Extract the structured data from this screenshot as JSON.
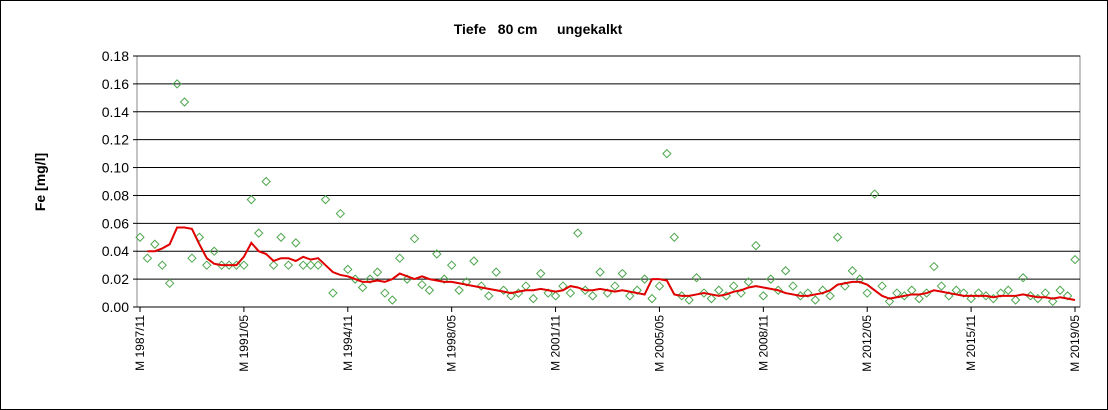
{
  "chart_data": {
    "type": "scatter",
    "title": "Tiefe   80 cm     ungekalkt",
    "ylabel": "Fe [mg/l]",
    "x": [
      "1987/11",
      "1988/02",
      "1988/05",
      "1988/08",
      "1988/11",
      "1989/02",
      "1989/05",
      "1989/08",
      "1989/11",
      "1990/02",
      "1990/05",
      "1990/08",
      "1990/11",
      "1991/02",
      "1991/05",
      "1991/08",
      "1991/11",
      "1992/02",
      "1992/05",
      "1992/08",
      "1992/11",
      "1993/02",
      "1993/05",
      "1993/08",
      "1993/11",
      "1994/02",
      "1994/05",
      "1994/08",
      "1994/11",
      "1995/02",
      "1995/05",
      "1995/08",
      "1995/11",
      "1996/02",
      "1996/05",
      "1996/08",
      "1996/11",
      "1997/02",
      "1997/05",
      "1997/08",
      "1997/11",
      "1998/02",
      "1998/05",
      "1998/08",
      "1998/11",
      "1999/02",
      "1999/05",
      "1999/08",
      "1999/11",
      "2000/02",
      "2000/05",
      "2000/08",
      "2000/11",
      "2001/02",
      "2001/05",
      "2001/08",
      "2001/11",
      "2002/02",
      "2002/05",
      "2002/08",
      "2002/11",
      "2003/02",
      "2003/05",
      "2003/08",
      "2003/11",
      "2004/02",
      "2004/05",
      "2004/08",
      "2004/11",
      "2005/02",
      "2005/05",
      "2005/08",
      "2005/11",
      "2006/02",
      "2006/05",
      "2006/08",
      "2006/11",
      "2007/02",
      "2007/05",
      "2007/08",
      "2007/11",
      "2008/02",
      "2008/05",
      "2008/08",
      "2008/11",
      "2009/02",
      "2009/05",
      "2009/08",
      "2009/11",
      "2010/02",
      "2010/05",
      "2010/08",
      "2010/11",
      "2011/02",
      "2011/05",
      "2011/08",
      "2011/11",
      "2012/02",
      "2012/05",
      "2012/08",
      "2012/11",
      "2013/02",
      "2013/05",
      "2013/08",
      "2013/11",
      "2014/02",
      "2014/05",
      "2014/08",
      "2014/11",
      "2015/02",
      "2015/05",
      "2015/08",
      "2015/11",
      "2016/02",
      "2016/05",
      "2016/08",
      "2016/11",
      "2017/02",
      "2017/05",
      "2017/08",
      "2017/11",
      "2018/02",
      "2018/05",
      "2018/08",
      "2018/11",
      "2019/02",
      "2019/05"
    ],
    "series": [
      {
        "mode": "markers",
        "color": "#4ea64e",
        "values": [
          0.05,
          0.035,
          0.045,
          0.03,
          0.017,
          0.16,
          0.147,
          0.035,
          0.05,
          0.03,
          0.04,
          0.03,
          0.03,
          0.03,
          0.03,
          0.077,
          0.053,
          0.09,
          0.03,
          0.05,
          0.03,
          0.046,
          0.03,
          0.03,
          0.03,
          0.077,
          0.01,
          0.067,
          0.027,
          0.02,
          0.014,
          0.02,
          0.025,
          0.01,
          0.005,
          0.035,
          0.02,
          0.049,
          0.016,
          0.012,
          0.038,
          0.02,
          0.03,
          0.012,
          0.018,
          0.033,
          0.015,
          0.008,
          0.025,
          0.012,
          0.008,
          0.01,
          0.015,
          0.006,
          0.024,
          0.01,
          0.008,
          0.015,
          0.01,
          0.053,
          0.012,
          0.008,
          0.025,
          0.01,
          0.015,
          0.024,
          0.008,
          0.012,
          0.02,
          0.006,
          0.015,
          0.11,
          0.05,
          0.008,
          0.005,
          0.021,
          0.01,
          0.006,
          0.012,
          0.008,
          0.015,
          0.01,
          0.018,
          0.044,
          0.008,
          0.02,
          0.012,
          0.026,
          0.015,
          0.008,
          0.01,
          0.005,
          0.012,
          0.008,
          0.05,
          0.015,
          0.026,
          0.02,
          0.01,
          0.081,
          0.015,
          0.004,
          0.01,
          0.008,
          0.012,
          0.006,
          0.01,
          0.029,
          0.015,
          0.008,
          0.012,
          0.01,
          0.006,
          0.01,
          0.008,
          0.006,
          0.01,
          0.012,
          0.005,
          0.021,
          0.008,
          0.006,
          0.01,
          0.004,
          0.012,
          0.008,
          0.034
        ]
      },
      {
        "mode": "line",
        "color": "#e00000",
        "values": [
          null,
          0.04,
          0.04,
          0.042,
          0.045,
          0.057,
          0.057,
          0.056,
          0.045,
          0.035,
          0.031,
          0.03,
          0.03,
          0.03,
          0.036,
          0.046,
          0.04,
          0.038,
          0.033,
          0.035,
          0.035,
          0.033,
          0.036,
          0.034,
          0.035,
          0.03,
          0.025,
          0.023,
          0.022,
          0.02,
          0.018,
          0.018,
          0.019,
          0.018,
          0.02,
          0.024,
          0.022,
          0.02,
          0.022,
          0.02,
          0.019,
          0.018,
          0.018,
          0.017,
          0.016,
          0.015,
          0.014,
          0.013,
          0.012,
          0.011,
          0.01,
          0.011,
          0.012,
          0.012,
          0.013,
          0.012,
          0.011,
          0.012,
          0.015,
          0.014,
          0.012,
          0.012,
          0.013,
          0.012,
          0.011,
          0.012,
          0.011,
          0.01,
          0.009,
          0.02,
          0.02,
          0.019,
          0.009,
          0.008,
          0.008,
          0.009,
          0.01,
          0.009,
          0.008,
          0.009,
          0.011,
          0.012,
          0.014,
          0.015,
          0.014,
          0.013,
          0.012,
          0.01,
          0.009,
          0.008,
          0.008,
          0.009,
          0.01,
          0.012,
          0.016,
          0.017,
          0.018,
          0.018,
          0.016,
          0.012,
          0.008,
          0.006,
          0.007,
          0.008,
          0.009,
          0.009,
          0.01,
          0.012,
          0.011,
          0.01,
          0.009,
          0.008,
          0.008,
          0.008,
          0.008,
          0.007,
          0.008,
          0.008,
          0.008,
          0.009,
          0.008,
          0.007,
          0.007,
          0.006,
          0.007,
          0.006,
          0.005
        ]
      }
    ],
    "xlim": [
      "1987/11",
      "2019/05"
    ],
    "xticks": [
      {
        "value": "1987/11",
        "label": "M 1987/11"
      },
      {
        "value": "1991/05",
        "label": "M 1991/05"
      },
      {
        "value": "1994/11",
        "label": "M 1994/11"
      },
      {
        "value": "1998/05",
        "label": "M 1998/05"
      },
      {
        "value": "2001/11",
        "label": "M 2001/11"
      },
      {
        "value": "2005/05",
        "label": "M 2005/05"
      },
      {
        "value": "2008/11",
        "label": "M 2008/11"
      },
      {
        "value": "2012/05",
        "label": "M 2012/05"
      },
      {
        "value": "2015/11",
        "label": "M 2015/11"
      },
      {
        "value": "2019/05",
        "label": "M 2019/05"
      }
    ],
    "ylim": [
      0,
      0.18
    ],
    "yticks": [
      {
        "value": 0,
        "label": "0.00"
      },
      {
        "value": 0.02,
        "label": "0.02"
      },
      {
        "value": 0.04,
        "label": "0.04"
      },
      {
        "value": 0.06,
        "label": "0.06"
      },
      {
        "value": 0.08,
        "label": "0.08"
      },
      {
        "value": 0.1,
        "label": "0.10"
      },
      {
        "value": 0.12,
        "label": "0.12"
      },
      {
        "value": 0.14,
        "label": "0.14"
      },
      {
        "value": 0.16,
        "label": "0.16"
      },
      {
        "value": 0.18,
        "label": "0.18"
      }
    ],
    "grid": true
  }
}
